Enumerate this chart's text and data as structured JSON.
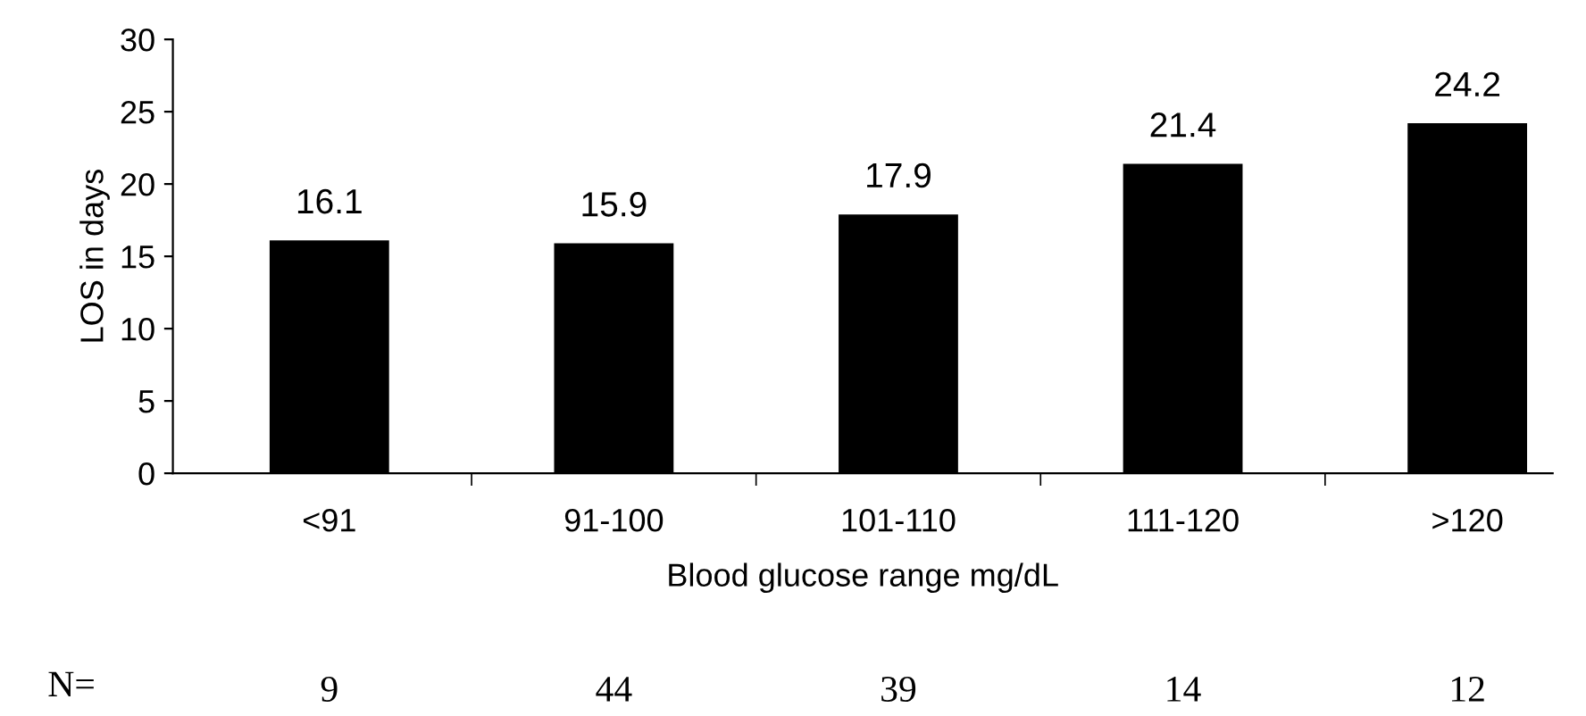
{
  "chart_data": {
    "type": "bar",
    "categories": [
      "<91",
      "91-100",
      "101-110",
      "111-120",
      ">120"
    ],
    "values": [
      16.1,
      15.9,
      17.9,
      21.4,
      24.2
    ],
    "color": "#000000",
    "data_labels": true,
    "xlabel": "Blood glucose range mg/dL",
    "ylabel": "LOS in days",
    "ylim": [
      0,
      30
    ],
    "yticks": [
      0,
      5,
      10,
      15,
      20,
      25,
      30
    ],
    "grid": false,
    "annotations": [
      "N=",
      "9",
      "44",
      "39",
      "14",
      "12"
    ]
  }
}
